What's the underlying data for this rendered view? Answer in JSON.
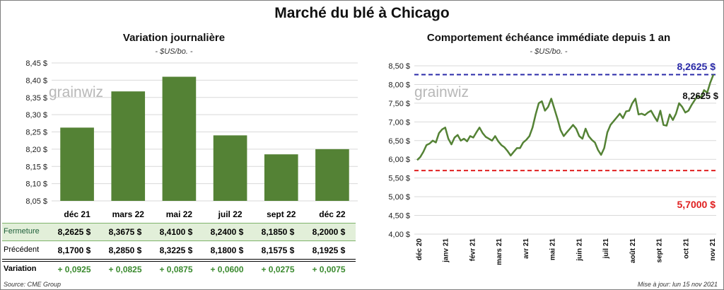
{
  "title": "Marché du blé à Chicago",
  "left": {
    "title": "Variation journalière",
    "unit": "- $US/bo. -",
    "watermark": "grainwiz",
    "table": {
      "rows": [
        {
          "label": "Fermeture",
          "values": [
            "8,2625  $",
            "8,3675  $",
            "8,4100  $",
            "8,2400  $",
            "8,1850  $",
            "8,2000  $"
          ]
        },
        {
          "label": "Précédent",
          "values": [
            "8,1700  $",
            "8,2850  $",
            "8,3225  $",
            "8,1800  $",
            "8,1575  $",
            "8,1925  $"
          ]
        },
        {
          "label": "Variation",
          "values": [
            "+ 0,0925",
            "+ 0,0825",
            "+ 0,0875",
            "+ 0,0600",
            "+ 0,0275",
            "+ 0,0075"
          ]
        }
      ]
    },
    "source": "Source: CME Group"
  },
  "right": {
    "title": "Comportement  échéance immédiate depuis 1 an",
    "unit": "- $US/bo. -",
    "watermark": "grainwiz",
    "high_label": "8,2625 $",
    "low_label": "5,7000 $",
    "last_label": "8,2625 $",
    "update": "Mise à jour: lun 15 nov 2021"
  },
  "chart_data": [
    {
      "type": "bar",
      "categories": [
        "déc 21",
        "mars 22",
        "mai 22",
        "juil 22",
        "sept 22",
        "déc 22"
      ],
      "values": [
        8.2625,
        8.3675,
        8.41,
        8.24,
        8.185,
        8.2
      ],
      "ylim": [
        8.05,
        8.45
      ],
      "yticks": [
        8.05,
        8.1,
        8.15,
        8.2,
        8.25,
        8.3,
        8.35,
        8.4,
        8.45
      ],
      "ytick_labels": [
        "8,05 $",
        "8,10 $",
        "8,15 $",
        "8,20 $",
        "8,25 $",
        "8,30 $",
        "8,35 $",
        "8,40 $",
        "8,45 $"
      ],
      "color": "#548235",
      "grid": true
    },
    {
      "type": "line",
      "x_labels": [
        "déc 20",
        "janv 21",
        "févr 21",
        "mars 21",
        "avr 21",
        "mai 21",
        "juin 21",
        "juil 21",
        "août 21",
        "sept 21",
        "oct 21",
        "nov 21"
      ],
      "values": [
        5.98,
        6.06,
        6.2,
        6.38,
        6.42,
        6.5,
        6.45,
        6.7,
        6.8,
        6.85,
        6.55,
        6.4,
        6.58,
        6.65,
        6.5,
        6.55,
        6.48,
        6.62,
        6.58,
        6.72,
        6.85,
        6.7,
        6.6,
        6.55,
        6.5,
        6.62,
        6.48,
        6.38,
        6.32,
        6.22,
        6.1,
        6.2,
        6.3,
        6.3,
        6.45,
        6.52,
        6.62,
        6.85,
        7.2,
        7.5,
        7.55,
        7.3,
        7.4,
        7.62,
        7.35,
        7.08,
        6.78,
        6.62,
        6.72,
        6.82,
        6.92,
        6.82,
        6.62,
        6.55,
        6.82,
        6.62,
        6.52,
        6.45,
        6.25,
        6.12,
        6.3,
        6.72,
        6.92,
        7.02,
        7.12,
        7.22,
        7.1,
        7.28,
        7.3,
        7.5,
        7.62,
        7.2,
        7.22,
        7.18,
        7.25,
        7.3,
        7.15,
        7.02,
        7.3,
        6.92,
        6.9,
        7.2,
        7.05,
        7.22,
        7.5,
        7.4,
        7.25,
        7.3,
        7.45,
        7.58,
        7.7,
        7.65,
        7.85,
        7.78,
        8.05,
        8.2625
      ],
      "ylim": [
        4.0,
        8.5
      ],
      "yticks": [
        4.0,
        4.5,
        5.0,
        5.5,
        6.0,
        6.5,
        7.0,
        7.5,
        8.0,
        8.5
      ],
      "ytick_labels": [
        "4,00 $",
        "4,50 $",
        "5,00 $",
        "5,50 $",
        "6,00 $",
        "6,50 $",
        "7,00 $",
        "7,50 $",
        "8,00 $",
        "8,50 $"
      ],
      "high": 8.2625,
      "low": 5.7,
      "color": "#548235",
      "grid": true
    }
  ]
}
